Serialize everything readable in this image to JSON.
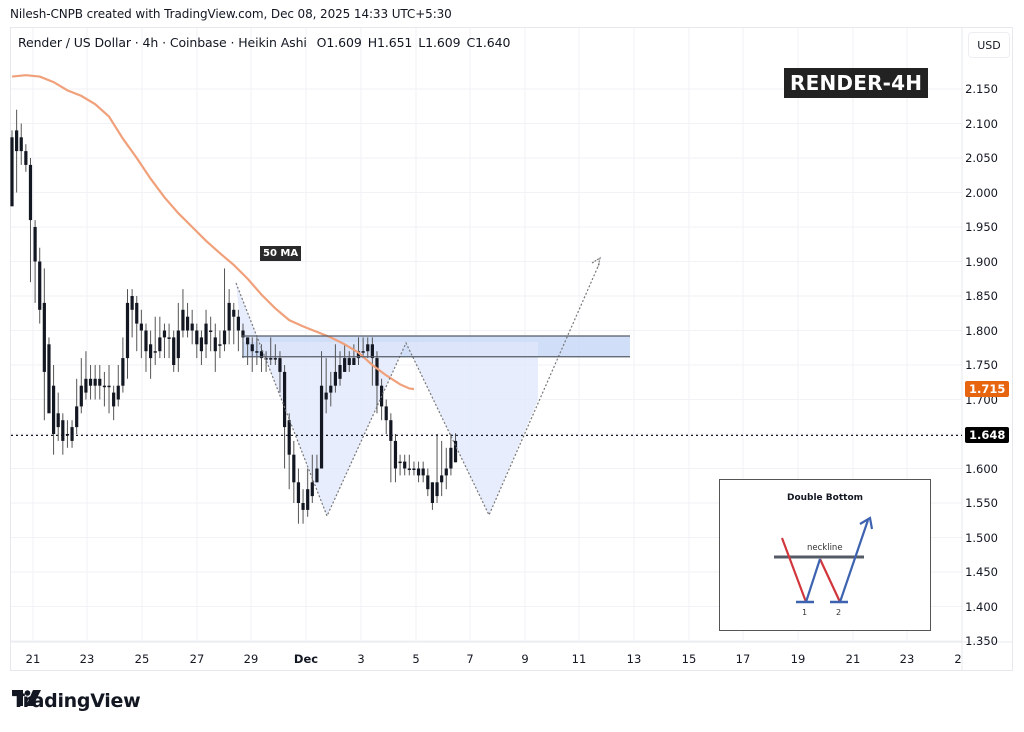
{
  "header": {
    "credit": "Nilesh-CNPB created with TradingView.com, Dec 08, 2025 14:33 UTC+5:30"
  },
  "legend": {
    "symbol": "Render / US Dollar · 4h · Coinbase · Heikin Ashi",
    "open": "O1.609",
    "high": "H1.651",
    "low": "L1.609",
    "close": "C1.640"
  },
  "currency_button": "USD",
  "title_badge": "RENDER-4H",
  "ma_label": "50 MA",
  "price_tags": {
    "ma_value": "1.715",
    "current_price": "1.648"
  },
  "colors": {
    "ma_line": "#f0a07a",
    "ma_tag": "#e8650f",
    "current_tag": "#000000",
    "zone_fill": "#c9d8f7",
    "pattern_fill": "#dfe7fb",
    "candle": "#131722",
    "grid": "#f0f2f5",
    "inset_red": "#d0363b",
    "inset_blue": "#3d63b0",
    "inset_neckline": "#555b66"
  },
  "inset": {
    "title": "Double Bottom",
    "neckline_label": "neckline",
    "bottom_labels": [
      "1",
      "2"
    ]
  },
  "brand": {
    "name": "TradingView"
  },
  "chart_data": {
    "type": "candlestick",
    "title": "Render / US Dollar · 4h · Coinbase · Heikin Ashi",
    "annotation_title": "RENDER-4H",
    "xlabel": "",
    "ylabel": "USD",
    "ylim": [
      1.35,
      2.17
    ],
    "y_ticks": [
      "2.150",
      "2.100",
      "2.050",
      "2.000",
      "1.950",
      "1.900",
      "1.850",
      "1.800",
      "1.750",
      "1.700",
      "1.650",
      "1.600",
      "1.550",
      "1.500",
      "1.450",
      "1.400",
      "1.350"
    ],
    "x_ticks": [
      "21",
      "23",
      "25",
      "27",
      "29",
      "Dec",
      "3",
      "5",
      "7",
      "9",
      "11",
      "13",
      "15",
      "17",
      "19",
      "21",
      "23",
      "2"
    ],
    "grid": true,
    "last_ohlc": {
      "open": 1.609,
      "high": 1.651,
      "low": 1.609,
      "close": 1.64
    },
    "current_price": 1.648,
    "ma50_last": 1.715,
    "resistance_zone": [
      1.762,
      1.792
    ],
    "pattern": "Double Bottom",
    "double_bottom_lows": [
      1.518,
      1.535
    ],
    "projected_target": 1.905,
    "ma50": [
      [
        0,
        2.168
      ],
      [
        3,
        2.17
      ],
      [
        6,
        2.168
      ],
      [
        9,
        2.16
      ],
      [
        12,
        2.148
      ],
      [
        15,
        2.14
      ],
      [
        18,
        2.128
      ],
      [
        21,
        2.11
      ],
      [
        24,
        2.078
      ],
      [
        27,
        2.05
      ],
      [
        30,
        2.02
      ],
      [
        33,
        1.993
      ],
      [
        36,
        1.97
      ],
      [
        39,
        1.95
      ],
      [
        42,
        1.93
      ],
      [
        45,
        1.912
      ],
      [
        48,
        1.895
      ],
      [
        51,
        1.875
      ],
      [
        54,
        1.852
      ],
      [
        57,
        1.832
      ],
      [
        60,
        1.815
      ],
      [
        63,
        1.806
      ],
      [
        66,
        1.798
      ],
      [
        69,
        1.79
      ],
      [
        72,
        1.78
      ],
      [
        75,
        1.768
      ],
      [
        78,
        1.75
      ],
      [
        81,
        1.735
      ],
      [
        84,
        1.722
      ],
      [
        86,
        1.716
      ],
      [
        87,
        1.715
      ]
    ],
    "candles": [
      [
        1.98,
        2.08,
        1.98,
        2.09
      ],
      [
        2.06,
        2.09,
        2.0,
        2.12
      ],
      [
        2.08,
        2.06,
        2.04,
        2.1
      ],
      [
        2.06,
        2.04,
        2.03,
        2.07
      ],
      [
        2.04,
        1.96,
        1.87,
        2.05
      ],
      [
        1.95,
        1.9,
        1.84,
        1.96
      ],
      [
        1.9,
        1.83,
        1.81,
        1.92
      ],
      [
        1.84,
        1.74,
        1.67,
        1.89
      ],
      [
        1.78,
        1.68,
        1.69,
        1.79
      ],
      [
        1.72,
        1.65,
        1.62,
        1.75
      ],
      [
        1.68,
        1.66,
        1.64,
        1.71
      ],
      [
        1.67,
        1.64,
        1.62,
        1.68
      ],
      [
        1.65,
        1.65,
        1.63,
        1.67
      ],
      [
        1.64,
        1.66,
        1.63,
        1.67
      ],
      [
        1.66,
        1.69,
        1.65,
        1.73
      ],
      [
        1.69,
        1.72,
        1.68,
        1.76
      ],
      [
        1.71,
        1.73,
        1.7,
        1.77
      ],
      [
        1.73,
        1.72,
        1.7,
        1.75
      ],
      [
        1.72,
        1.73,
        1.7,
        1.75
      ],
      [
        1.73,
        1.72,
        1.7,
        1.75
      ],
      [
        1.72,
        1.72,
        1.69,
        1.74
      ],
      [
        1.72,
        1.72,
        1.68,
        1.75
      ],
      [
        1.71,
        1.69,
        1.67,
        1.72
      ],
      [
        1.7,
        1.72,
        1.69,
        1.75
      ],
      [
        1.72,
        1.76,
        1.71,
        1.79
      ],
      [
        1.76,
        1.84,
        1.73,
        1.86
      ],
      [
        1.83,
        1.85,
        1.79,
        1.86
      ],
      [
        1.84,
        1.81,
        1.77,
        1.85
      ],
      [
        1.81,
        1.8,
        1.76,
        1.83
      ],
      [
        1.8,
        1.77,
        1.74,
        1.81
      ],
      [
        1.78,
        1.76,
        1.73,
        1.8
      ],
      [
        1.77,
        1.77,
        1.75,
        1.82
      ],
      [
        1.77,
        1.79,
        1.76,
        1.82
      ],
      [
        1.79,
        1.8,
        1.76,
        1.81
      ],
      [
        1.79,
        1.79,
        1.76,
        1.81
      ],
      [
        1.79,
        1.75,
        1.74,
        1.8
      ],
      [
        1.76,
        1.8,
        1.74,
        1.84
      ],
      [
        1.8,
        1.83,
        1.79,
        1.86
      ],
      [
        1.82,
        1.8,
        1.79,
        1.84
      ],
      [
        1.81,
        1.8,
        1.78,
        1.83
      ],
      [
        1.8,
        1.78,
        1.76,
        1.81
      ],
      [
        1.79,
        1.77,
        1.75,
        1.8
      ],
      [
        1.78,
        1.81,
        1.76,
        1.83
      ],
      [
        1.8,
        1.8,
        1.77,
        1.82
      ],
      [
        1.79,
        1.77,
        1.74,
        1.81
      ],
      [
        1.78,
        1.78,
        1.76,
        1.8
      ],
      [
        1.78,
        1.8,
        1.77,
        1.89
      ],
      [
        1.8,
        1.84,
        1.78,
        1.86
      ],
      [
        1.83,
        1.82,
        1.78,
        1.84
      ],
      [
        1.82,
        1.8,
        1.77,
        1.83
      ],
      [
        1.8,
        1.79,
        1.76,
        1.81
      ],
      [
        1.79,
        1.78,
        1.75,
        1.79
      ],
      [
        1.78,
        1.77,
        1.74,
        1.79
      ],
      [
        1.77,
        1.77,
        1.75,
        1.79
      ],
      [
        1.77,
        1.76,
        1.74,
        1.78
      ],
      [
        1.76,
        1.76,
        1.74,
        1.77
      ],
      [
        1.76,
        1.76,
        1.75,
        1.79
      ],
      [
        1.76,
        1.76,
        1.75,
        1.78
      ],
      [
        1.76,
        1.74,
        1.71,
        1.77
      ],
      [
        1.74,
        1.66,
        1.6,
        1.75
      ],
      [
        1.67,
        1.62,
        1.57,
        1.68
      ],
      [
        1.62,
        1.58,
        1.55,
        1.64
      ],
      [
        1.58,
        1.55,
        1.52,
        1.6
      ],
      [
        1.55,
        1.54,
        1.52,
        1.57
      ],
      [
        1.54,
        1.57,
        1.53,
        1.6
      ],
      [
        1.56,
        1.58,
        1.55,
        1.62
      ],
      [
        1.58,
        1.6,
        1.58,
        1.62
      ],
      [
        1.6,
        1.72,
        1.6,
        1.77
      ],
      [
        1.7,
        1.71,
        1.68,
        1.76
      ],
      [
        1.71,
        1.72,
        1.69,
        1.74
      ],
      [
        1.72,
        1.74,
        1.71,
        1.78
      ],
      [
        1.73,
        1.75,
        1.72,
        1.77
      ],
      [
        1.74,
        1.76,
        1.74,
        1.78
      ],
      [
        1.75,
        1.76,
        1.74,
        1.77
      ],
      [
        1.75,
        1.76,
        1.75,
        1.78
      ],
      [
        1.76,
        1.77,
        1.75,
        1.79
      ],
      [
        1.77,
        1.77,
        1.76,
        1.79
      ],
      [
        1.77,
        1.78,
        1.76,
        1.79
      ],
      [
        1.78,
        1.76,
        1.72,
        1.79
      ],
      [
        1.76,
        1.72,
        1.68,
        1.77
      ],
      [
        1.72,
        1.69,
        1.67,
        1.73
      ],
      [
        1.69,
        1.67,
        1.65,
        1.7
      ],
      [
        1.67,
        1.64,
        1.58,
        1.68
      ],
      [
        1.64,
        1.6,
        1.58,
        1.65
      ],
      [
        1.61,
        1.61,
        1.59,
        1.62
      ],
      [
        1.61,
        1.6,
        1.59,
        1.62
      ],
      [
        1.6,
        1.6,
        1.59,
        1.62
      ],
      [
        1.6,
        1.6,
        1.59,
        1.61
      ],
      [
        1.6,
        1.59,
        1.58,
        1.61
      ],
      [
        1.6,
        1.59,
        1.58,
        1.61
      ],
      [
        1.59,
        1.57,
        1.56,
        1.6
      ],
      [
        1.58,
        1.55,
        1.54,
        1.58
      ],
      [
        1.56,
        1.58,
        1.55,
        1.65
      ],
      [
        1.58,
        1.59,
        1.56,
        1.64
      ],
      [
        1.59,
        1.6,
        1.57,
        1.63
      ],
      [
        1.6,
        1.63,
        1.59,
        1.65
      ],
      [
        1.609,
        1.64,
        1.609,
        1.651
      ]
    ]
  }
}
